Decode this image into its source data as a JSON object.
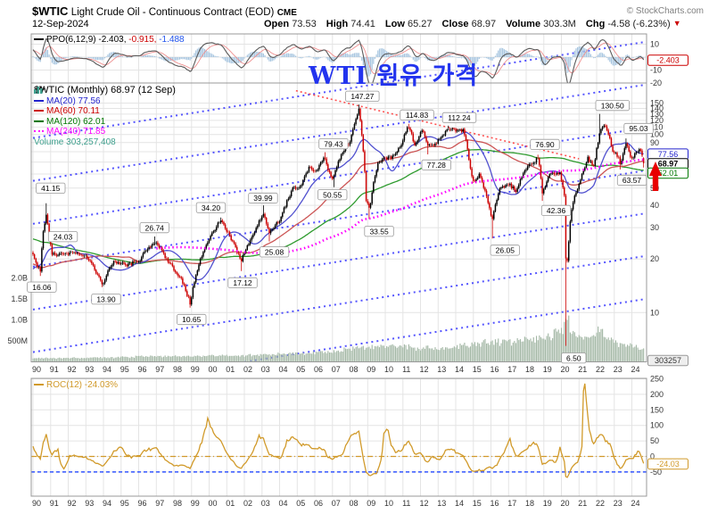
{
  "header": {
    "symbol": "$WTIC",
    "title": "Light Crude Oil - Continuous Contract (EOD)",
    "exchange": "CME",
    "copyright": "© StockCharts.com",
    "date": "12-Sep-2024",
    "quote": {
      "open_label": "Open",
      "open": "73.53",
      "high_label": "High",
      "high": "74.41",
      "low_label": "Low",
      "low": "65.27",
      "close_label": "Close",
      "close": "68.97",
      "volume_label": "Volume",
      "volume": "303.3M",
      "chg_label": "Chg",
      "chg": "-4.58 (-6.23%)",
      "chg_dir_icon": "▼"
    }
  },
  "ppo": {
    "label": "PPO(6,12,9)",
    "v1": "-2.403,",
    "v2": "-0.915,",
    "v3": "-1.488",
    "last_box": "-2.403"
  },
  "main": {
    "legend_title": "$WTIC (Monthly) 68.97 (12 Sep)",
    "ma20": "MA(20) 77.56",
    "ma60": "MA(60) 70.11",
    "ma120": "MA(120) 62.01",
    "ma240": "MA(240) 71.85",
    "volume_legend": "Volume 303,257,408",
    "overlay_text": "WTI 원유 가격",
    "last_boxes": [
      {
        "text": "77.56",
        "color": "#2222cc"
      },
      {
        "text": "68.97",
        "color": "#000000"
      },
      {
        "text": "62.01",
        "color": "#007700"
      }
    ],
    "volume_box": "303257"
  },
  "roc": {
    "label": "ROC(12) -24.03%",
    "last_box": "-24.03"
  },
  "colors": {
    "up": "#000000",
    "down": "#cc0000",
    "ma20": "#5151cf",
    "ma60": "#cc5555",
    "ma120": "#2e9b2e",
    "ma240": "#ff00ff",
    "ma20_text": "#2222cc",
    "ma60_text": "#cc0000",
    "ma120_text": "#007700",
    "ma240_text": "#ff00ff",
    "volume_bar": "#a4b8a6",
    "volume_text": "#3fa08e",
    "channel": "#2b2bff",
    "trend": "#ff3333",
    "roc_line": "#d19a2a",
    "roc_zero": "#d19a2a",
    "roc_low": "#3355ff",
    "ppo_line": "#5a5a5a",
    "ppo_signal": "#ef9090",
    "ppo_hist": "#a8c6e0",
    "grid": "#e4e4e4",
    "border": "#999999",
    "axis_text": "#333333",
    "accent_red": "#e80000",
    "ppo_v2": "#cc0000",
    "ppo_v3": "#2255ee"
  },
  "chart_data": {
    "type": "candlestick",
    "symbol": "$WTIC",
    "timeframe": "Monthly",
    "price_scale": "log",
    "x_labels": [
      "90",
      "91",
      "92",
      "93",
      "94",
      "95",
      "96",
      "97",
      "98",
      "99",
      "00",
      "01",
      "02",
      "03",
      "04",
      "05",
      "06",
      "07",
      "08",
      "09",
      "10",
      "11",
      "12",
      "13",
      "14",
      "15",
      "16",
      "17",
      "18",
      "19",
      "20",
      "21",
      "22",
      "23",
      "24"
    ],
    "price_ticks": [
      150,
      140,
      130,
      120,
      110,
      100,
      90,
      50,
      40,
      30,
      20,
      10
    ],
    "price_grid": [
      150,
      140,
      130,
      120,
      110,
      100,
      90,
      80,
      70,
      60,
      50,
      40,
      30,
      20,
      10
    ],
    "volume_ticks": [
      {
        "label": "2.0B",
        "v": 2000
      },
      {
        "label": "1.5B",
        "v": 1500
      },
      {
        "label": "1.0B",
        "v": 1000
      },
      {
        "label": "500M",
        "v": 500
      }
    ],
    "ppo_ticks": [
      10,
      -10,
      -20
    ],
    "ppo_grid": [
      10,
      0,
      -10,
      -20
    ],
    "roc_ticks": [
      250,
      200,
      150,
      100,
      50,
      0,
      -50
    ],
    "last_ohlc": {
      "open": 73.53,
      "high": 74.41,
      "low": 65.27,
      "close": 68.97
    },
    "close_anchors": [
      [
        1970,
        3.3
      ],
      [
        1973.9,
        4.3
      ],
      [
        1974.1,
        10.1
      ],
      [
        1978.9,
        14.9
      ],
      [
        1980.3,
        39.5
      ],
      [
        1981.2,
        38
      ],
      [
        1983,
        30.5
      ],
      [
        1985.8,
        27
      ],
      [
        1986.25,
        12.7
      ],
      [
        1987,
        18.5
      ],
      [
        1988.7,
        14
      ],
      [
        1989.9,
        21.8
      ],
      [
        1990.2,
        18.5
      ],
      [
        1990.42,
        17
      ],
      [
        1990.55,
        27
      ],
      [
        1990.75,
        35.9
      ],
      [
        1991.05,
        21.5
      ],
      [
        1991.5,
        21.3
      ],
      [
        1992.4,
        21.8
      ],
      [
        1993.1,
        20.4
      ],
      [
        1993.95,
        14.2
      ],
      [
        1994.55,
        19.4
      ],
      [
        1995.3,
        18.3
      ],
      [
        1996.0,
        19.5
      ],
      [
        1996.95,
        25.2
      ],
      [
        1997.6,
        19.8
      ],
      [
        1998.4,
        15.4
      ],
      [
        1998.92,
        11.3
      ],
      [
        1999.7,
        22.6
      ],
      [
        2000.2,
        28
      ],
      [
        2000.65,
        32.7
      ],
      [
        2001.1,
        27.5
      ],
      [
        2001.83,
        19.6
      ],
      [
        2002.4,
        26.3
      ],
      [
        2003.1,
        35.9
      ],
      [
        2003.38,
        28
      ],
      [
        2004.0,
        32.5
      ],
      [
        2004.75,
        49.6
      ],
      [
        2005.2,
        51
      ],
      [
        2005.65,
        64.5
      ],
      [
        2006.05,
        61.6
      ],
      [
        2006.55,
        74
      ],
      [
        2006.95,
        55
      ],
      [
        2007.05,
        58.1
      ],
      [
        2007.7,
        84
      ],
      [
        2008.0,
        91.7
      ],
      [
        2008.5,
        140
      ],
      [
        2008.92,
        41
      ],
      [
        2009.12,
        39
      ],
      [
        2009.6,
        70
      ],
      [
        2010.05,
        74
      ],
      [
        2010.4,
        74
      ],
      [
        2010.95,
        89
      ],
      [
        2011.3,
        113.9
      ],
      [
        2011.7,
        85.6
      ],
      [
        2012.1,
        106.9
      ],
      [
        2012.42,
        84.9
      ],
      [
        2012.9,
        88.9
      ],
      [
        2013.6,
        107.6
      ],
      [
        2014.45,
        105.4
      ],
      [
        2014.95,
        53.3
      ],
      [
        2015.35,
        59.6
      ],
      [
        2015.95,
        37
      ],
      [
        2016.08,
        33.7
      ],
      [
        2016.45,
        48.3
      ],
      [
        2017.0,
        52.8
      ],
      [
        2017.45,
        48.3
      ],
      [
        2018.0,
        64.7
      ],
      [
        2018.7,
        73.2
      ],
      [
        2018.92,
        45.4
      ],
      [
        2019.3,
        60.1
      ],
      [
        2019.9,
        61.1
      ],
      [
        2020.05,
        51.6
      ],
      [
        2020.17,
        44.8
      ],
      [
        2020.25,
        20.5
      ],
      [
        2020.33,
        18.8
      ],
      [
        2020.6,
        40
      ],
      [
        2021.0,
        52.2
      ],
      [
        2021.5,
        73.5
      ],
      [
        2021.85,
        66.2
      ],
      [
        2022.17,
        100.3
      ],
      [
        2022.4,
        114.7
      ],
      [
        2022.6,
        105.8
      ],
      [
        2022.92,
        80.3
      ],
      [
        2023.2,
        75.7
      ],
      [
        2023.35,
        68.1
      ],
      [
        2023.7,
        90.8
      ],
      [
        2023.95,
        71.7
      ],
      [
        2024.2,
        78.3
      ],
      [
        2024.4,
        81.9
      ],
      [
        2024.55,
        77.9
      ],
      [
        2024.67,
        68.97
      ]
    ],
    "extremes": [
      {
        "t": 1990.42,
        "low": 16.06
      },
      {
        "t": 1990.75,
        "high": 41.15
      },
      {
        "t": 1993.95,
        "low": 13.9
      },
      {
        "t": 1996.95,
        "high": 26.74
      },
      {
        "t": 1998.92,
        "low": 10.65
      },
      {
        "t": 2000.65,
        "high": 34.2
      },
      {
        "t": 2001.83,
        "low": 17.12
      },
      {
        "t": 2003.1,
        "high": 39.99
      },
      {
        "t": 2003.38,
        "low": 25.08
      },
      {
        "t": 2006.55,
        "high": 79.43
      },
      {
        "t": 2007.05,
        "low": 50.55
      },
      {
        "t": 2008.5,
        "high": 147.27
      },
      {
        "t": 2009.12,
        "low": 33.55
      },
      {
        "t": 2011.3,
        "high": 114.83
      },
      {
        "t": 2012.42,
        "low": 77.28
      },
      {
        "t": 2013.6,
        "high": 112.24
      },
      {
        "t": 2016.08,
        "low": 26.05
      },
      {
        "t": 2018.7,
        "high": 76.9
      },
      {
        "t": 2018.92,
        "low": 42.36
      },
      {
        "t": 2020.25,
        "low": 6.5
      },
      {
        "t": 2022.17,
        "high": 130.5
      },
      {
        "t": 2023.35,
        "low": 63.57
      },
      {
        "t": 2023.7,
        "high": 95.03
      }
    ],
    "volume_anchors": [
      [
        1990,
        95
      ],
      [
        1994,
        110
      ],
      [
        1997,
        150
      ],
      [
        2000,
        155
      ],
      [
        2002,
        170
      ],
      [
        2004,
        200
      ],
      [
        2006,
        240
      ],
      [
        2008,
        330
      ],
      [
        2009,
        400
      ],
      [
        2010,
        430
      ],
      [
        2011,
        400
      ],
      [
        2012,
        370
      ],
      [
        2013,
        340
      ],
      [
        2014,
        380
      ],
      [
        2015,
        480
      ],
      [
        2016,
        540
      ],
      [
        2017,
        530
      ],
      [
        2018,
        600
      ],
      [
        2019,
        640
      ],
      [
        2020.1,
        800
      ],
      [
        2020.3,
        1250
      ],
      [
        2020.6,
        750
      ],
      [
        2021,
        680
      ],
      [
        2021.6,
        580
      ],
      [
        2022.2,
        850
      ],
      [
        2022.6,
        600
      ],
      [
        2023,
        520
      ],
      [
        2023.5,
        480
      ],
      [
        2024,
        440
      ],
      [
        2024.67,
        303
      ]
    ],
    "ma_periods": [
      20,
      60,
      120,
      240
    ],
    "annotations": [
      {
        "text": "41.15",
        "t": 1991.0,
        "p": 50
      },
      {
        "text": "16.06",
        "t": 1990.5,
        "p": 13.9
      },
      {
        "text": "24.03",
        "t": 1991.7,
        "p": 26.7
      },
      {
        "text": "13.90",
        "t": 1994.15,
        "p": 11.9
      },
      {
        "text": "26.74",
        "t": 1996.9,
        "p": 30.0
      },
      {
        "text": "34.20",
        "t": 2000.1,
        "p": 38.8
      },
      {
        "text": "10.65",
        "t": 1999.0,
        "p": 9.15
      },
      {
        "text": "17.12",
        "t": 2001.9,
        "p": 14.7
      },
      {
        "text": "39.99",
        "t": 2003.06,
        "p": 43.9
      },
      {
        "text": "25.08",
        "t": 2003.7,
        "p": 21.9
      },
      {
        "text": "50.55",
        "t": 2007.0,
        "p": 45.9
      },
      {
        "text": "79.43",
        "t": 2007.06,
        "p": 88.7
      },
      {
        "text": "147.27",
        "t": 2008.7,
        "p": 164
      },
      {
        "text": "33.55",
        "t": 2009.65,
        "p": 28.6
      },
      {
        "text": "114.83",
        "t": 2011.8,
        "p": 128.6
      },
      {
        "text": "112.24",
        "t": 2014.2,
        "p": 124.1
      },
      {
        "text": "77.28",
        "t": 2012.9,
        "p": 67.4
      },
      {
        "text": "26.05",
        "t": 2016.8,
        "p": 22.4
      },
      {
        "text": "42.36",
        "t": 2019.7,
        "p": 37.4
      },
      {
        "text": "76.90",
        "t": 2019.06,
        "p": 87.8
      },
      {
        "text": "6.50",
        "t": 2020.7,
        "p": 5.56
      },
      {
        "text": "130.50",
        "t": 2022.9,
        "p": 145.6
      },
      {
        "text": "95.03",
        "t": 2024.38,
        "p": 108
      },
      {
        "text": "63.57",
        "t": 2024.0,
        "p": 55.3
      }
    ],
    "channel_lines": {
      "t1": 1990.0,
      "t2": 2024.85,
      "p_start": [
        95.5,
        54.9,
        31.5,
        18.1,
        10.4,
        6.0,
        3.44
      ],
      "growth_factor": 3.475
    },
    "trendline": {
      "t1": 2004.93,
      "p1": 176,
      "t2": 2021.0,
      "p2": 73
    }
  }
}
